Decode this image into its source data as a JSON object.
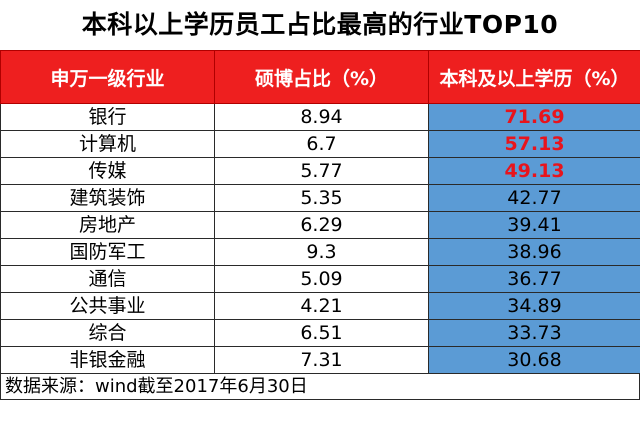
{
  "title": "本科以上学历员工占比最高的行业TOP10",
  "headers": [
    "申万一级行业",
    "硕博占比（%）",
    "本科及以上学历（%）"
  ],
  "rows": [
    {
      "industry": "银行",
      "masters_phd": "8.94",
      "bachelor_plus": "71.69",
      "highlight": true
    },
    {
      "industry": "计算机",
      "masters_phd": "6.7",
      "bachelor_plus": "57.13",
      "highlight": true
    },
    {
      "industry": "传媒",
      "masters_phd": "5.77",
      "bachelor_plus": "49.13",
      "highlight": true
    },
    {
      "industry": "建筑装饰",
      "masters_phd": "5.35",
      "bachelor_plus": "42.77",
      "highlight": false
    },
    {
      "industry": "房地产",
      "masters_phd": "6.29",
      "bachelor_plus": "39.41",
      "highlight": false
    },
    {
      "industry": "国防军工",
      "masters_phd": "9.3",
      "bachelor_plus": "38.96",
      "highlight": false
    },
    {
      "industry": "通信",
      "masters_phd": "5.09",
      "bachelor_plus": "36.77",
      "highlight": false
    },
    {
      "industry": "公共事业",
      "masters_phd": "4.21",
      "bachelor_plus": "34.89",
      "highlight": false
    },
    {
      "industry": "综合",
      "masters_phd": "6.51",
      "bachelor_plus": "33.73",
      "highlight": false
    },
    {
      "industry": "非银金融",
      "masters_phd": "7.31",
      "bachelor_plus": "30.68",
      "highlight": false
    }
  ],
  "source_note": "数据来源：wind截至2017年6月30日",
  "colors": {
    "header_bg": "#ee1f1f",
    "highlight_col_bg": "#5b9bd5",
    "highlight_text": "#e8141c"
  }
}
